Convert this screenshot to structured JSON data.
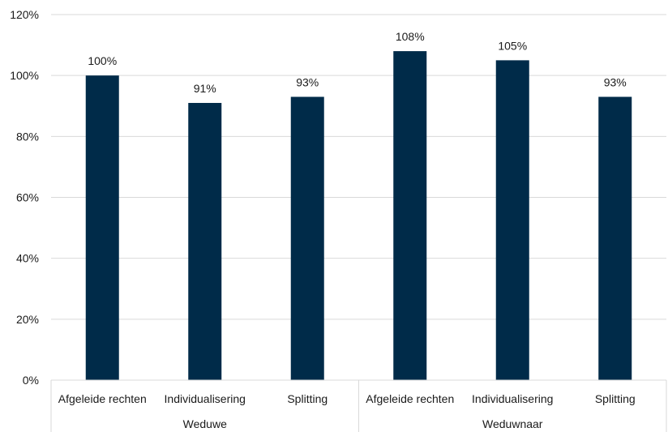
{
  "chart_data": {
    "type": "bar",
    "categories": [
      "Afgeleide rechten",
      "Individualisering",
      "Splitting",
      "Afgeleide rechten",
      "Individualisering",
      "Splitting"
    ],
    "groups": [
      {
        "label": "Weduwe",
        "count": 3
      },
      {
        "label": "Weduwnaar",
        "count": 3
      }
    ],
    "values": [
      100,
      91,
      93,
      108,
      105,
      93
    ],
    "data_labels": [
      "100%",
      "91%",
      "93%",
      "108%",
      "105%",
      "93%"
    ],
    "ylim": [
      0,
      120
    ],
    "yticks": [
      0,
      20,
      40,
      60,
      80,
      100,
      120
    ],
    "ytick_labels": [
      "0%",
      "20%",
      "40%",
      "60%",
      "80%",
      "100%",
      "120%"
    ],
    "grid": true,
    "bar_color": "#002b49",
    "grid_color": "#d9d9d9"
  }
}
